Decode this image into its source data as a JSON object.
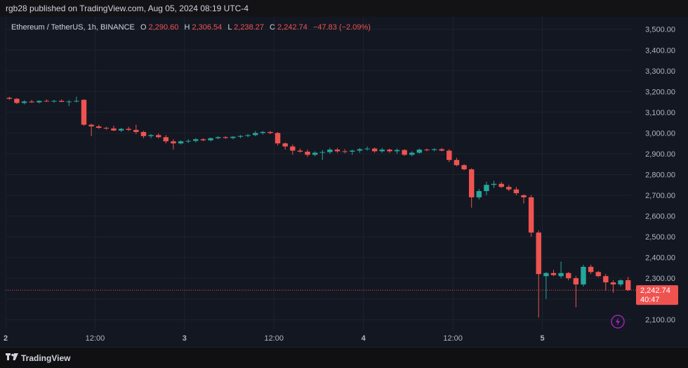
{
  "publisher_line": "rgb28 published on TradingView.com, Aug 05, 2024 08:19 UTC-4",
  "brand": "TradingView",
  "legend": {
    "symbol": "Ethereum / TetherUS, 1h, BINANCE",
    "o_label": "O",
    "o_value": "2,290.60",
    "h_label": "H",
    "h_value": "2,306.54",
    "l_label": "L",
    "l_value": "2,238.27",
    "c_label": "C",
    "c_value": "2,242.74",
    "change": "−47.83 (−2.09%)"
  },
  "price_tag": {
    "price": "2,242.74",
    "countdown": "40:47"
  },
  "colors": {
    "up": "#26a69a",
    "down": "#ef5350",
    "background": "#131722",
    "grid": "#1e222d",
    "axis_text": "#b2b5be",
    "alert_icon": "#9c27b0"
  },
  "icons": {
    "logo": "tradingview-logo-icon",
    "alert": "lightning-alert-icon"
  },
  "chart_data": {
    "type": "candlestick",
    "symbol": "Ethereum / TetherUS",
    "interval": "1h",
    "exchange": "BINANCE",
    "ylim": [
      2050,
      3560
    ],
    "yticks": [
      2100,
      2200,
      2300,
      2400,
      2500,
      2600,
      2700,
      2800,
      2900,
      3000,
      3100,
      3200,
      3300,
      3400,
      3500
    ],
    "ytick_labels": [
      "2,100.00",
      "2,200.00",
      "2,300.00",
      "2,400.00",
      "2,500.00",
      "2,600.00",
      "2,700.00",
      "2,800.00",
      "2,900.00",
      "3,000.00",
      "3,100.00",
      "3,200.00",
      "3,300.00",
      "3,400.00",
      "3,500.00"
    ],
    "x_ticks": [
      {
        "index": 0,
        "label": "2"
      },
      {
        "index": 12,
        "label": "12:00"
      },
      {
        "index": 24,
        "label": "3"
      },
      {
        "index": 36,
        "label": "12:00"
      },
      {
        "index": 48,
        "label": "4"
      },
      {
        "index": 60,
        "label": "12:00"
      },
      {
        "index": 72,
        "label": "5"
      }
    ],
    "last_price": 2242.74,
    "candles": [
      [
        3170,
        3175,
        3160,
        3165
      ],
      [
        3165,
        3168,
        3140,
        3145
      ],
      [
        3145,
        3158,
        3138,
        3152
      ],
      [
        3152,
        3160,
        3145,
        3148
      ],
      [
        3148,
        3158,
        3143,
        3155
      ],
      [
        3155,
        3162,
        3150,
        3152
      ],
      [
        3152,
        3160,
        3146,
        3155
      ],
      [
        3155,
        3162,
        3150,
        3150
      ],
      [
        3150,
        3160,
        3130,
        3152
      ],
      [
        3152,
        3175,
        3148,
        3155
      ],
      [
        3160,
        3162,
        3035,
        3040
      ],
      [
        3040,
        3045,
        2985,
        3032
      ],
      [
        3032,
        3040,
        3020,
        3025
      ],
      [
        3025,
        3030,
        3015,
        3022
      ],
      [
        3022,
        3035,
        3010,
        3012
      ],
      [
        3012,
        3025,
        3005,
        3020
      ],
      [
        3020,
        3030,
        3010,
        3015
      ],
      [
        3015,
        3040,
        2995,
        3005
      ],
      [
        3005,
        3010,
        2975,
        2985
      ],
      [
        2985,
        2995,
        2975,
        2990
      ],
      [
        2990,
        2998,
        2975,
        2980
      ],
      [
        2980,
        2990,
        2950,
        2960
      ],
      [
        2960,
        2970,
        2920,
        2950
      ],
      [
        2950,
        2965,
        2945,
        2960
      ],
      [
        2960,
        2970,
        2952,
        2962
      ],
      [
        2962,
        2975,
        2955,
        2970
      ],
      [
        2970,
        2975,
        2960,
        2965
      ],
      [
        2965,
        2978,
        2960,
        2975
      ],
      [
        2975,
        2985,
        2970,
        2980
      ],
      [
        2980,
        2985,
        2972,
        2976
      ],
      [
        2976,
        2985,
        2970,
        2982
      ],
      [
        2982,
        2990,
        2975,
        2986
      ],
      [
        2986,
        2995,
        2980,
        2990
      ],
      [
        2990,
        3010,
        2985,
        3000
      ],
      [
        3000,
        3010,
        2992,
        3005
      ],
      [
        3005,
        3010,
        2995,
        3000
      ],
      [
        3000,
        3005,
        2940,
        2950
      ],
      [
        2950,
        2955,
        2920,
        2935
      ],
      [
        2935,
        2945,
        2895,
        2915
      ],
      [
        2915,
        2925,
        2905,
        2910
      ],
      [
        2910,
        2920,
        2885,
        2895
      ],
      [
        2895,
        2912,
        2888,
        2905
      ],
      [
        2905,
        2918,
        2870,
        2908
      ],
      [
        2908,
        2928,
        2900,
        2920
      ],
      [
        2920,
        2928,
        2905,
        2912
      ],
      [
        2912,
        2922,
        2902,
        2910
      ],
      [
        2910,
        2920,
        2895,
        2915
      ],
      [
        2915,
        2928,
        2905,
        2922
      ],
      [
        2922,
        2935,
        2915,
        2925
      ],
      [
        2925,
        2930,
        2905,
        2912
      ],
      [
        2912,
        2928,
        2905,
        2920
      ],
      [
        2920,
        2925,
        2905,
        2912
      ],
      [
        2912,
        2925,
        2900,
        2918
      ],
      [
        2918,
        2922,
        2890,
        2895
      ],
      [
        2895,
        2912,
        2888,
        2905
      ],
      [
        2905,
        2925,
        2900,
        2920
      ],
      [
        2920,
        2926,
        2912,
        2918
      ],
      [
        2918,
        2926,
        2912,
        2922
      ],
      [
        2922,
        2928,
        2912,
        2915
      ],
      [
        2915,
        2922,
        2860,
        2870
      ],
      [
        2870,
        2880,
        2840,
        2845
      ],
      [
        2845,
        2850,
        2820,
        2825
      ],
      [
        2825,
        2830,
        2640,
        2690
      ],
      [
        2690,
        2730,
        2680,
        2720
      ],
      [
        2720,
        2765,
        2700,
        2750
      ],
      [
        2750,
        2770,
        2735,
        2755
      ],
      [
        2755,
        2765,
        2735,
        2740
      ],
      [
        2740,
        2750,
        2720,
        2728
      ],
      [
        2728,
        2740,
        2700,
        2710
      ],
      [
        2700,
        2705,
        2660,
        2690
      ],
      [
        2690,
        2700,
        2500,
        2520
      ],
      [
        2520,
        2530,
        2110,
        2320
      ],
      [
        2310,
        2330,
        2200,
        2325
      ],
      [
        2325,
        2340,
        2310,
        2315
      ],
      [
        2310,
        2380,
        2300,
        2325
      ],
      [
        2325,
        2330,
        2290,
        2300
      ],
      [
        2300,
        2310,
        2160,
        2270
      ],
      [
        2270,
        2365,
        2260,
        2355
      ],
      [
        2355,
        2365,
        2320,
        2330
      ],
      [
        2330,
        2335,
        2305,
        2310
      ],
      [
        2310,
        2320,
        2240,
        2280
      ],
      [
        2280,
        2290,
        2230,
        2270
      ],
      [
        2270,
        2295,
        2260,
        2290
      ],
      [
        2290.6,
        2306.54,
        2238.27,
        2242.74
      ]
    ]
  }
}
